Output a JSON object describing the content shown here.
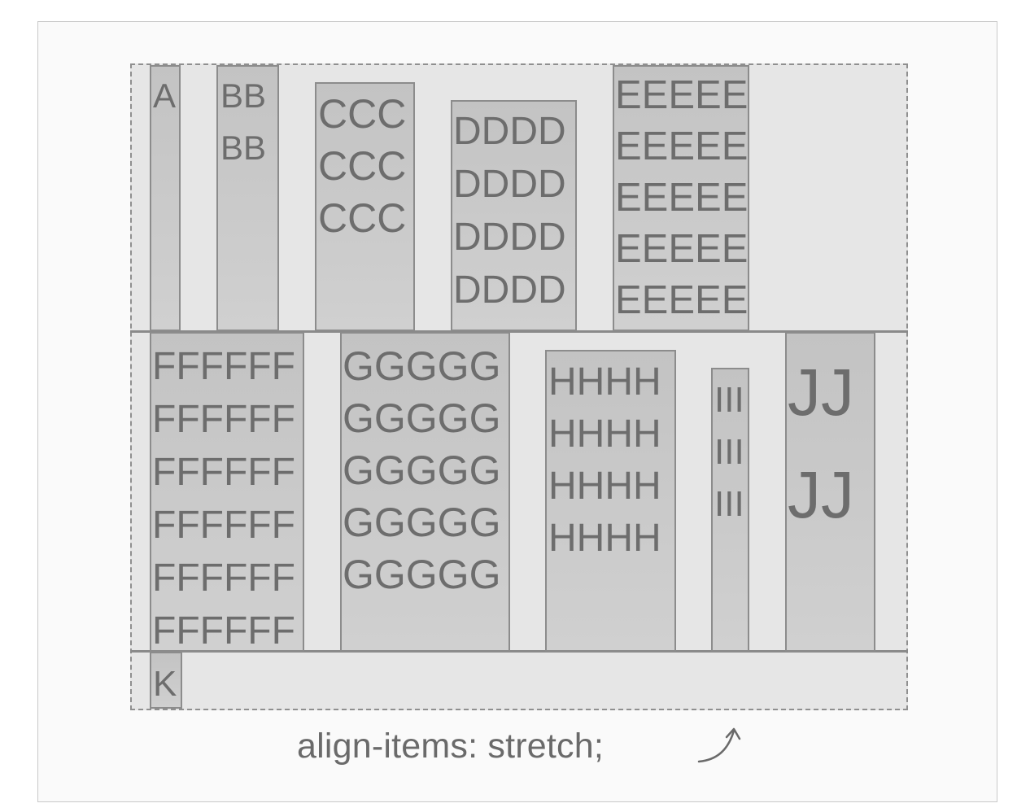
{
  "diagram": {
    "caption": "align-items: stretch;",
    "caption_annotation_icon": "curved-arrow-icon",
    "rows": [
      {
        "items": [
          {
            "id": "a",
            "lines": [
              "A"
            ]
          },
          {
            "id": "b",
            "lines": [
              "BB",
              "BB"
            ]
          },
          {
            "id": "c",
            "lines": [
              "CCC",
              "CCC",
              "CCC"
            ]
          },
          {
            "id": "d",
            "lines": [
              "DDDD",
              "DDDD",
              "DDDD",
              "DDDD"
            ]
          },
          {
            "id": "e",
            "lines": [
              "EEEEE",
              "EEEEE",
              "EEEEE",
              "EEEEE",
              "EEEEE"
            ]
          }
        ]
      },
      {
        "items": [
          {
            "id": "f",
            "lines": [
              "FFFFFF",
              "FFFFFF",
              "FFFFFF",
              "FFFFFF",
              "FFFFFF",
              "FFFFFF"
            ]
          },
          {
            "id": "g",
            "lines": [
              "GGGGG",
              "GGGGG",
              "GGGGG",
              "GGGGG",
              "GGGGG"
            ]
          },
          {
            "id": "h",
            "lines": [
              "HHHH",
              "HHHH",
              "HHHH",
              "HHHH"
            ]
          },
          {
            "id": "i",
            "lines": [
              "III",
              "III",
              "III"
            ]
          },
          {
            "id": "j",
            "lines": [
              "JJ",
              "JJ"
            ]
          }
        ]
      },
      {
        "items": [
          {
            "id": "k",
            "lines": [
              "K"
            ]
          }
        ]
      }
    ]
  }
}
